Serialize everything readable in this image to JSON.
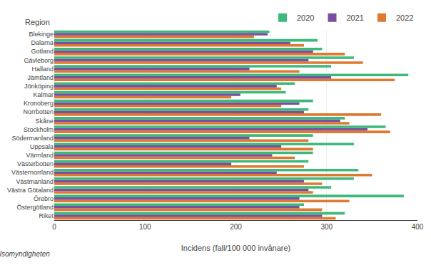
{
  "chart_data": {
    "type": "bar",
    "orientation": "horizontal",
    "categories": [
      "Riket",
      "Östergötland",
      "Örebro",
      "Västra Götaland",
      "Västmanland",
      "Västernorrland",
      "Västerbotten",
      "Värmland",
      "Uppsala",
      "Södermanland",
      "Stockholm",
      "Skåne",
      "Norrbotten",
      "Kronoberg",
      "Kalmar",
      "Jönköping",
      "Jämtland",
      "Halland",
      "Gävleborg",
      "Gotland",
      "Dalarna",
      "Blekinge"
    ],
    "series": [
      {
        "name": "2020",
        "color": "#3db97a",
        "values": [
          320,
          275,
          385,
          305,
          330,
          335,
          280,
          285,
          330,
          285,
          365,
          320,
          280,
          285,
          255,
          265,
          390,
          305,
          330,
          295,
          290,
          237
        ]
      },
      {
        "name": "2021",
        "color": "#7b4f9e",
        "values": [
          295,
          270,
          270,
          280,
          275,
          245,
          195,
          240,
          250,
          215,
          345,
          315,
          275,
          270,
          205,
          245,
          305,
          215,
          280,
          285,
          260,
          235
        ]
      },
      {
        "name": "2022",
        "color": "#e07830",
        "values": [
          310,
          295,
          325,
          285,
          295,
          350,
          275,
          265,
          285,
          280,
          370,
          325,
          360,
          250,
          195,
          250,
          375,
          270,
          340,
          320,
          275,
          220
        ]
      }
    ],
    "xlabel": "Incidens (fall/100 000 invånare)",
    "ylabel": "Region",
    "xlim": [
      0,
      400
    ],
    "xticks": [
      0,
      100,
      200,
      300,
      400
    ],
    "grid": true,
    "legend": "top right",
    "annotations": [
      "Källa: Folkhälsomyndigheten"
    ]
  }
}
